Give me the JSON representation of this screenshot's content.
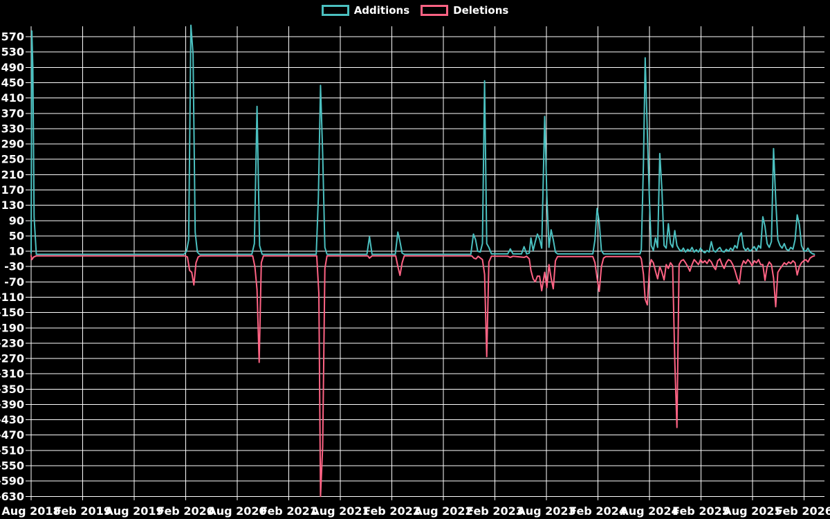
{
  "legend": {
    "items": [
      {
        "label": "Additions",
        "color": "#4bc0c0"
      },
      {
        "label": "Deletions",
        "color": "#ff6384"
      }
    ]
  },
  "chart_data": {
    "type": "line",
    "title": "",
    "xlabel": "",
    "ylabel": "",
    "background": "#000000",
    "grid": true,
    "grid_color": "#ffffff",
    "legend_position": "top-center",
    "x_axis": {
      "tick_labels": [
        "Aug 2018",
        "Feb 2019",
        "Aug 2019",
        "Feb 2020",
        "Aug 2020",
        "Feb 2021",
        "Aug 2021",
        "Feb 2022",
        "Aug 2022",
        "Feb 2023",
        "Aug 2023",
        "Feb 2024",
        "Aug 2024",
        "Feb 2025",
        "Aug 2025",
        "Feb 2026"
      ],
      "months_per_tick": 6
    },
    "y_axis": {
      "max": 570,
      "min": -630,
      "step": 40,
      "tick_labels": [
        "570",
        "530",
        "490",
        "450",
        "410",
        "370",
        "330",
        "290",
        "250",
        "210",
        "170",
        "130",
        "90",
        "50",
        "10",
        "-30",
        "-70",
        "-110",
        "-150",
        "-190",
        "-230",
        "-270",
        "-310",
        "-350",
        "-390",
        "-430",
        "-470",
        "-510",
        "-550",
        "-590",
        "-630"
      ]
    },
    "series": [
      {
        "name": "Additions",
        "color": "#4bc0c0",
        "points": [
          [
            0,
            5
          ],
          [
            0.08,
            585
          ],
          [
            0.2,
            490
          ],
          [
            0.35,
            100
          ],
          [
            0.6,
            2
          ],
          [
            17.8,
            2
          ],
          [
            18.1,
            10
          ],
          [
            18.35,
            40
          ],
          [
            18.6,
            600
          ],
          [
            18.85,
            525
          ],
          [
            19.1,
            60
          ],
          [
            19.35,
            8
          ],
          [
            19.6,
            2
          ],
          [
            25.7,
            2
          ],
          [
            26.0,
            30
          ],
          [
            26.3,
            388
          ],
          [
            26.6,
            25
          ],
          [
            26.9,
            2
          ],
          [
            33.2,
            2
          ],
          [
            33.45,
            150
          ],
          [
            33.7,
            443
          ],
          [
            33.95,
            265
          ],
          [
            34.2,
            20
          ],
          [
            34.45,
            2
          ],
          [
            39.1,
            2
          ],
          [
            39.4,
            48
          ],
          [
            39.7,
            2
          ],
          [
            42.4,
            2
          ],
          [
            42.7,
            60
          ],
          [
            42.95,
            35
          ],
          [
            43.2,
            5
          ],
          [
            43.45,
            2
          ],
          [
            51.2,
            2
          ],
          [
            51.5,
            55
          ],
          [
            51.75,
            40
          ],
          [
            52.0,
            10
          ],
          [
            52.3,
            8
          ],
          [
            52.55,
            30
          ],
          [
            52.8,
            455
          ],
          [
            53.05,
            30
          ],
          [
            53.3,
            20
          ],
          [
            53.6,
            3
          ],
          [
            55.5,
            3
          ],
          [
            55.8,
            16
          ],
          [
            56.1,
            3
          ],
          [
            57.1,
            3
          ],
          [
            57.4,
            22
          ],
          [
            57.7,
            3
          ],
          [
            58.0,
            5
          ],
          [
            58.2,
            45
          ],
          [
            58.45,
            12
          ],
          [
            58.7,
            35
          ],
          [
            58.95,
            55
          ],
          [
            59.2,
            42
          ],
          [
            59.45,
            18
          ],
          [
            59.8,
            362
          ],
          [
            60.05,
            155
          ],
          [
            60.3,
            20
          ],
          [
            60.55,
            66
          ],
          [
            60.8,
            40
          ],
          [
            61.05,
            8
          ],
          [
            61.3,
            3
          ],
          [
            65.4,
            3
          ],
          [
            65.65,
            40
          ],
          [
            65.9,
            122
          ],
          [
            66.15,
            85
          ],
          [
            66.4,
            12
          ],
          [
            66.65,
            3
          ],
          [
            70.9,
            3
          ],
          [
            71.05,
            15
          ],
          [
            71.3,
            240
          ],
          [
            71.5,
            515
          ],
          [
            71.75,
            320
          ],
          [
            72.0,
            140
          ],
          [
            72.2,
            25
          ],
          [
            72.45,
            12
          ],
          [
            72.7,
            45
          ],
          [
            72.95,
            20
          ],
          [
            73.2,
            265
          ],
          [
            73.45,
            170
          ],
          [
            73.7,
            25
          ],
          [
            73.95,
            18
          ],
          [
            74.2,
            82
          ],
          [
            74.45,
            30
          ],
          [
            74.7,
            20
          ],
          [
            74.95,
            64
          ],
          [
            75.2,
            25
          ],
          [
            75.45,
            15
          ],
          [
            75.7,
            10
          ],
          [
            75.95,
            18
          ],
          [
            76.2,
            8
          ],
          [
            76.45,
            15
          ],
          [
            76.7,
            10
          ],
          [
            76.95,
            20
          ],
          [
            77.2,
            8
          ],
          [
            77.45,
            14
          ],
          [
            77.7,
            8
          ],
          [
            77.95,
            18
          ],
          [
            78.2,
            10
          ],
          [
            78.45,
            6
          ],
          [
            78.7,
            12
          ],
          [
            78.95,
            8
          ],
          [
            79.2,
            35
          ],
          [
            79.45,
            12
          ],
          [
            79.7,
            8
          ],
          [
            79.95,
            15
          ],
          [
            80.2,
            20
          ],
          [
            80.45,
            10
          ],
          [
            80.7,
            8
          ],
          [
            80.95,
            15
          ],
          [
            81.2,
            10
          ],
          [
            81.45,
            18
          ],
          [
            81.7,
            12
          ],
          [
            81.95,
            25
          ],
          [
            82.2,
            18
          ],
          [
            82.45,
            50
          ],
          [
            82.7,
            58
          ],
          [
            82.95,
            20
          ],
          [
            83.2,
            12
          ],
          [
            83.45,
            18
          ],
          [
            83.7,
            10
          ],
          [
            83.95,
            15
          ],
          [
            84.2,
            22
          ],
          [
            84.45,
            12
          ],
          [
            84.7,
            25
          ],
          [
            84.95,
            18
          ],
          [
            85.2,
            100
          ],
          [
            85.45,
            75
          ],
          [
            85.7,
            30
          ],
          [
            85.95,
            20
          ],
          [
            86.2,
            35
          ],
          [
            86.45,
            278
          ],
          [
            86.7,
            145
          ],
          [
            86.95,
            40
          ],
          [
            87.2,
            25
          ],
          [
            87.45,
            18
          ],
          [
            87.7,
            30
          ],
          [
            87.95,
            15
          ],
          [
            88.2,
            12
          ],
          [
            88.45,
            20
          ],
          [
            88.7,
            15
          ],
          [
            88.95,
            40
          ],
          [
            89.2,
            105
          ],
          [
            89.45,
            80
          ],
          [
            89.7,
            25
          ],
          [
            89.95,
            12
          ],
          [
            90.2,
            10
          ],
          [
            90.45,
            18
          ],
          [
            90.7,
            8
          ],
          [
            90.95,
            4
          ],
          [
            91.2,
            2
          ]
        ]
      },
      {
        "name": "Deletions",
        "color": "#ff6384",
        "points": [
          [
            0,
            -2
          ],
          [
            0.08,
            -12
          ],
          [
            0.3,
            -5
          ],
          [
            0.6,
            -2
          ],
          [
            17.9,
            -2
          ],
          [
            18.2,
            -5
          ],
          [
            18.45,
            -40
          ],
          [
            18.7,
            -45
          ],
          [
            18.95,
            -78
          ],
          [
            19.2,
            -20
          ],
          [
            19.45,
            -5
          ],
          [
            19.7,
            -2
          ],
          [
            25.8,
            -2
          ],
          [
            26.05,
            -30
          ],
          [
            26.3,
            -90
          ],
          [
            26.55,
            -280
          ],
          [
            26.8,
            -20
          ],
          [
            27.05,
            -2
          ],
          [
            33.25,
            -2
          ],
          [
            33.5,
            -100
          ],
          [
            33.7,
            -630
          ],
          [
            33.95,
            -500
          ],
          [
            34.2,
            -35
          ],
          [
            34.45,
            -2
          ],
          [
            39.2,
            -2
          ],
          [
            39.4,
            -8
          ],
          [
            39.7,
            -2
          ],
          [
            42.45,
            -2
          ],
          [
            42.7,
            -30
          ],
          [
            42.95,
            -53
          ],
          [
            43.2,
            -20
          ],
          [
            43.45,
            -2
          ],
          [
            51.3,
            -2
          ],
          [
            51.55,
            -8
          ],
          [
            51.8,
            -10
          ],
          [
            52.05,
            -3
          ],
          [
            52.55,
            -12
          ],
          [
            52.8,
            -50
          ],
          [
            53.05,
            -265
          ],
          [
            53.3,
            -18
          ],
          [
            53.6,
            -3
          ],
          [
            55.5,
            -3
          ],
          [
            55.8,
            -6
          ],
          [
            56.1,
            -3
          ],
          [
            57.4,
            -6
          ],
          [
            57.7,
            -3
          ],
          [
            58.0,
            -10
          ],
          [
            58.2,
            -40
          ],
          [
            58.45,
            -62
          ],
          [
            58.7,
            -70
          ],
          [
            58.95,
            -55
          ],
          [
            59.2,
            -55
          ],
          [
            59.45,
            -93
          ],
          [
            59.8,
            -45
          ],
          [
            60.05,
            -85
          ],
          [
            60.3,
            -25
          ],
          [
            60.55,
            -60
          ],
          [
            60.8,
            -88
          ],
          [
            61.05,
            -15
          ],
          [
            61.3,
            -4
          ],
          [
            65.4,
            -4
          ],
          [
            65.65,
            -20
          ],
          [
            65.9,
            -60
          ],
          [
            66.15,
            -95
          ],
          [
            66.4,
            -30
          ],
          [
            66.65,
            -8
          ],
          [
            66.9,
            -4
          ],
          [
            70.9,
            -4
          ],
          [
            71.05,
            -10
          ],
          [
            71.3,
            -50
          ],
          [
            71.5,
            -115
          ],
          [
            71.75,
            -130
          ],
          [
            72.0,
            -35
          ],
          [
            72.2,
            -12
          ],
          [
            72.45,
            -20
          ],
          [
            72.7,
            -42
          ],
          [
            72.95,
            -62
          ],
          [
            73.2,
            -30
          ],
          [
            73.45,
            -45
          ],
          [
            73.7,
            -65
          ],
          [
            73.95,
            -25
          ],
          [
            74.2,
            -35
          ],
          [
            74.45,
            -20
          ],
          [
            74.7,
            -28
          ],
          [
            74.95,
            -277
          ],
          [
            75.2,
            -450
          ],
          [
            75.45,
            -25
          ],
          [
            75.7,
            -15
          ],
          [
            75.95,
            -12
          ],
          [
            76.2,
            -20
          ],
          [
            76.45,
            -30
          ],
          [
            76.7,
            -42
          ],
          [
            76.95,
            -25
          ],
          [
            77.2,
            -12
          ],
          [
            77.45,
            -18
          ],
          [
            77.7,
            -25
          ],
          [
            77.95,
            -12
          ],
          [
            78.2,
            -20
          ],
          [
            78.45,
            -15
          ],
          [
            78.7,
            -22
          ],
          [
            78.95,
            -12
          ],
          [
            79.2,
            -18
          ],
          [
            79.45,
            -30
          ],
          [
            79.7,
            -38
          ],
          [
            79.95,
            -15
          ],
          [
            80.2,
            -10
          ],
          [
            80.45,
            -25
          ],
          [
            80.7,
            -35
          ],
          [
            80.95,
            -20
          ],
          [
            81.2,
            -12
          ],
          [
            81.45,
            -15
          ],
          [
            81.7,
            -25
          ],
          [
            81.95,
            -40
          ],
          [
            82.2,
            -60
          ],
          [
            82.45,
            -75
          ],
          [
            82.7,
            -30
          ],
          [
            82.95,
            -15
          ],
          [
            83.2,
            -22
          ],
          [
            83.45,
            -12
          ],
          [
            83.7,
            -18
          ],
          [
            83.95,
            -28
          ],
          [
            84.2,
            -15
          ],
          [
            84.45,
            -20
          ],
          [
            84.7,
            -12
          ],
          [
            84.95,
            -25
          ],
          [
            85.2,
            -25
          ],
          [
            85.45,
            -66
          ],
          [
            85.7,
            -30
          ],
          [
            85.95,
            -18
          ],
          [
            86.2,
            -25
          ],
          [
            86.45,
            -60
          ],
          [
            86.7,
            -135
          ],
          [
            86.95,
            -45
          ],
          [
            87.2,
            -36
          ],
          [
            87.45,
            -28
          ],
          [
            87.7,
            -20
          ],
          [
            87.95,
            -25
          ],
          [
            88.2,
            -18
          ],
          [
            88.45,
            -22
          ],
          [
            88.7,
            -15
          ],
          [
            88.95,
            -20
          ],
          [
            89.2,
            -52
          ],
          [
            89.45,
            -30
          ],
          [
            89.7,
            -20
          ],
          [
            89.95,
            -15
          ],
          [
            90.2,
            -12
          ],
          [
            90.45,
            -18
          ],
          [
            90.7,
            -8
          ],
          [
            90.95,
            -4
          ],
          [
            91.2,
            -2
          ]
        ]
      }
    ]
  }
}
